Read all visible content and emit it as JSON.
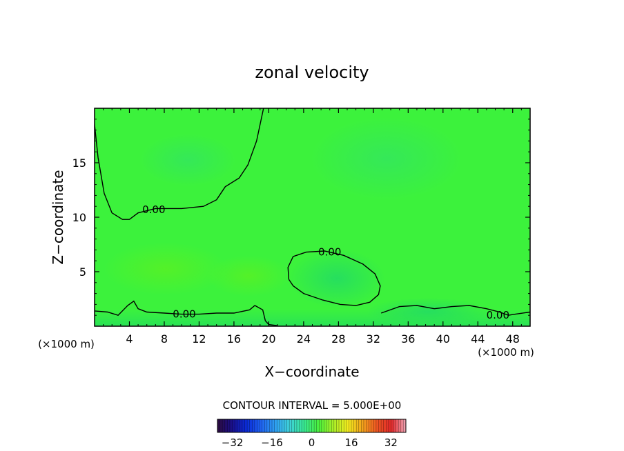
{
  "chart_data": {
    "type": "heatmap",
    "title": "zonal velocity",
    "xlabel": "X−coordinate",
    "ylabel": "Z−coordinate",
    "x_unit_left": "(×1000 m)",
    "x_unit_right": "(×1000 m)",
    "xlim": [
      0,
      50
    ],
    "ylim": [
      0,
      20
    ],
    "x_ticks": [
      4,
      8,
      12,
      16,
      20,
      24,
      28,
      32,
      36,
      40,
      44,
      48
    ],
    "x_tick_labels": [
      "4",
      "8",
      "12",
      "16",
      "20",
      "24",
      "28",
      "32",
      "36",
      "40",
      "44",
      "48"
    ],
    "y_ticks": [
      5,
      10,
      15
    ],
    "y_tick_labels": [
      "5",
      "10",
      "15"
    ],
    "contour_interval_label": "CONTOUR INTERVAL = 5.000E+00",
    "contour_label_text": "0.00",
    "zero_contours": [
      {
        "name": "upper-left",
        "points": [
          [
            -0.2,
            20
          ],
          [
            0.4,
            15.5
          ],
          [
            1.1,
            12.2
          ],
          [
            2.0,
            10.4
          ],
          [
            3.2,
            9.8
          ],
          [
            4.0,
            9.8
          ],
          [
            5.0,
            10.4
          ],
          [
            7.0,
            10.8
          ],
          [
            10.0,
            10.8
          ],
          [
            12.5,
            11.0
          ],
          [
            14.0,
            11.6
          ],
          [
            15.0,
            12.8
          ],
          [
            16.6,
            13.6
          ],
          [
            17.6,
            14.8
          ],
          [
            18.6,
            17.0
          ],
          [
            19.4,
            20
          ]
        ]
      },
      {
        "name": "center-blob",
        "points": [
          [
            22.3,
            4.3
          ],
          [
            22.2,
            5.4
          ],
          [
            22.8,
            6.4
          ],
          [
            24.3,
            6.8
          ],
          [
            26.4,
            6.9
          ],
          [
            28.6,
            6.5
          ],
          [
            30.8,
            5.7
          ],
          [
            32.2,
            4.8
          ],
          [
            32.8,
            3.7
          ],
          [
            32.6,
            2.9
          ],
          [
            31.6,
            2.2
          ],
          [
            30.0,
            1.9
          ],
          [
            28.2,
            2.0
          ],
          [
            26.2,
            2.4
          ],
          [
            24.0,
            3.0
          ],
          [
            22.8,
            3.7
          ],
          [
            22.3,
            4.3
          ]
        ]
      },
      {
        "name": "lower-band",
        "points": [
          [
            0,
            1.4
          ],
          [
            1.5,
            1.3
          ],
          [
            2.7,
            1.0
          ],
          [
            3.8,
            1.9
          ],
          [
            4.5,
            2.3
          ],
          [
            5.0,
            1.6
          ],
          [
            6.0,
            1.3
          ],
          [
            8.0,
            1.2
          ],
          [
            10.0,
            1.1
          ],
          [
            12.0,
            1.1
          ],
          [
            14.0,
            1.2
          ],
          [
            16.0,
            1.2
          ],
          [
            17.8,
            1.5
          ],
          [
            18.4,
            1.9
          ],
          [
            19.3,
            1.5
          ],
          [
            19.6,
            0.5
          ],
          [
            20.0,
            0.15
          ],
          [
            21.0,
            0.05
          ]
        ]
      },
      {
        "name": "lower-right-band",
        "points": [
          [
            32.9,
            1.2
          ],
          [
            35.0,
            1.8
          ],
          [
            37.0,
            1.9
          ],
          [
            39.0,
            1.6
          ],
          [
            41.0,
            1.8
          ],
          [
            43.0,
            1.9
          ],
          [
            45.0,
            1.6
          ],
          [
            46.5,
            1.3
          ],
          [
            47.5,
            1.0
          ],
          [
            48.3,
            1.1
          ],
          [
            50,
            1.3
          ]
        ]
      }
    ],
    "contour_labels": [
      {
        "x": 6.8,
        "y": 10.7,
        "text": "0.00"
      },
      {
        "x": 27.0,
        "y": 6.8,
        "text": "0.00"
      },
      {
        "x": 10.3,
        "y": 1.1,
        "text": "0.00"
      },
      {
        "x": 46.3,
        "y": 1.0,
        "text": "0.00"
      }
    ],
    "field_value_min": -38,
    "field_value_max": 38,
    "field_background_value": 0,
    "colorbar": {
      "range": [
        -38,
        38
      ],
      "tick_values": [
        -32,
        -16,
        0,
        16,
        32
      ],
      "tick_labels": [
        "−32",
        "−16",
        "0",
        "16",
        "32"
      ],
      "colors": [
        "#2b0b3f",
        "#1a0f8a",
        "#0a2bd8",
        "#1f62f0",
        "#2fa0f2",
        "#3fd2d8",
        "#38e890",
        "#4bf03c",
        "#aaf028",
        "#f2ea1e",
        "#f2a21c",
        "#ee5622",
        "#e0282a",
        "#f2a8b8"
      ]
    },
    "grid": false,
    "legend": "none"
  }
}
